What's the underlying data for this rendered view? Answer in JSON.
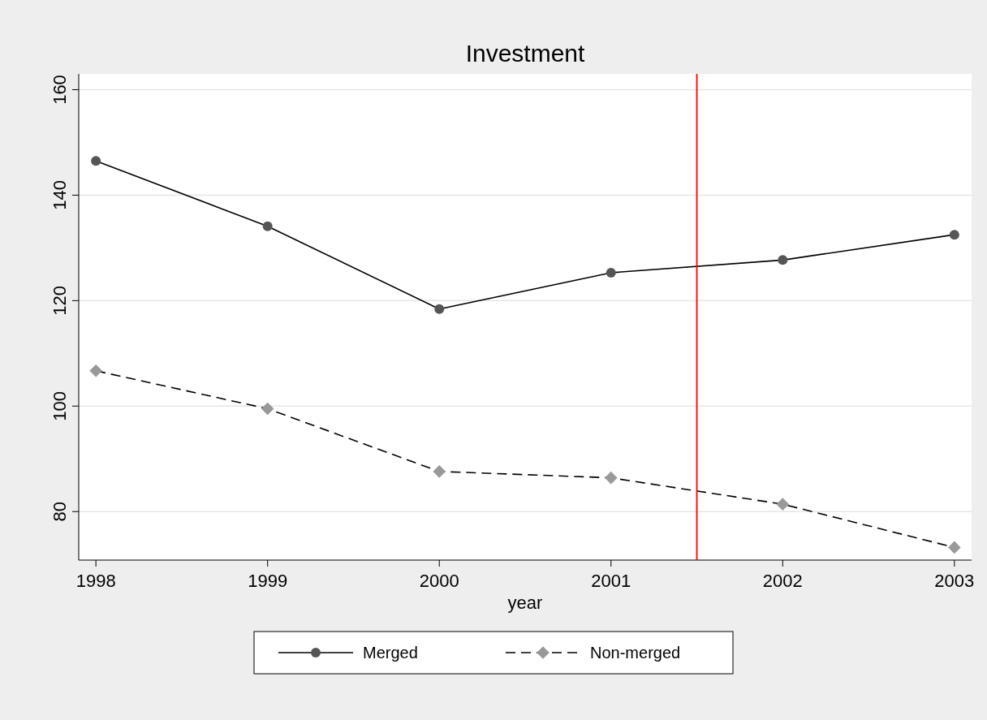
{
  "chart_data": {
    "type": "line",
    "title": "Investment",
    "xlabel": "year",
    "x": [
      1998,
      1999,
      2000,
      2001,
      2002,
      2003
    ],
    "series": [
      {
        "name": "Merged",
        "color": "#555555",
        "values": [
          146.5,
          134.1,
          118.4,
          125.3,
          127.7,
          132.5
        ],
        "marker": "circle",
        "line_style": "solid"
      },
      {
        "name": "Non-merged",
        "color": "#999999",
        "values": [
          106.7,
          99.5,
          87.6,
          86.4,
          81.4,
          73.2
        ],
        "marker": "diamond",
        "line_style": "dashed"
      }
    ],
    "xlim": [
      1997.9,
      2003.1
    ],
    "xticks": [
      1998,
      1999,
      2000,
      2001,
      2002,
      2003
    ],
    "ylim": [
      70.8,
      163
    ],
    "yticks": [
      80,
      100,
      120,
      140,
      160
    ],
    "grid": "y",
    "legend": "bottom",
    "ref_lines": [
      {
        "axis": "x",
        "value": 2001.5,
        "color": "#ff0000"
      }
    ]
  }
}
